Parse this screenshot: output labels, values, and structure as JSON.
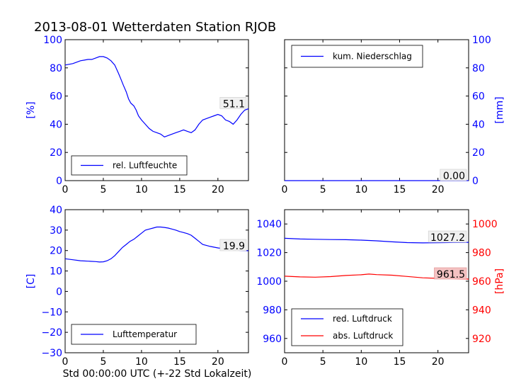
{
  "figure_title": "2013-08-01 Wetterdaten Station RJOB",
  "x_axis_label": "Std 00:00:00 UTC (+-22 Std Lokalzeit)",
  "colors": {
    "blue": "#0000ff",
    "red": "#ff0000",
    "annotation_red_bg": "#f4c2c2",
    "annotation_bg": "#f0f0f0"
  },
  "chart_data": [
    {
      "type": "line",
      "panel": "top-left",
      "ylabel": "[%]",
      "ylabel_side": "left",
      "xlim": [
        0,
        24
      ],
      "ylim": [
        0,
        100
      ],
      "xticks": [
        0,
        5,
        10,
        15,
        20
      ],
      "yticks": [
        0,
        20,
        40,
        60,
        80,
        100
      ],
      "legend_placement": "lower-left",
      "series": [
        {
          "name": "rel. Luftfeuchte",
          "color": "#0000ff",
          "x": [
            0,
            0.5,
            1,
            1.5,
            2,
            2.5,
            3,
            3.5,
            4,
            4.5,
            5,
            5.5,
            6,
            6.5,
            7,
            7.3,
            7.6,
            8,
            8.3,
            8.6,
            9,
            9.3,
            9.6,
            10,
            10.5,
            11,
            11.5,
            12,
            12.5,
            13,
            13.5,
            14,
            14.5,
            15,
            15.5,
            16,
            16.5,
            17,
            17.5,
            18,
            18.5,
            19,
            19.5,
            20,
            20.5,
            21,
            21.5,
            22,
            22.5,
            23,
            23.5,
            24
          ],
          "y": [
            82,
            82.5,
            83,
            84,
            85,
            85.5,
            86,
            86,
            87,
            88,
            88,
            87,
            85,
            82,
            76,
            72,
            68,
            63,
            58,
            55,
            53,
            50,
            46,
            43,
            40,
            37,
            35,
            34,
            33,
            31,
            32,
            33,
            34,
            35,
            36,
            35,
            34,
            36,
            40,
            43,
            44,
            45,
            46,
            47,
            46,
            43,
            42,
            40,
            43,
            47,
            50,
            51
          ]
        }
      ],
      "annotation": {
        "text": "51.1",
        "x": 24,
        "y": 51.1
      }
    },
    {
      "type": "line",
      "panel": "top-right",
      "ylabel": "[mm]",
      "ylabel_side": "right",
      "xlim": [
        0,
        24
      ],
      "ylim": [
        0,
        100
      ],
      "xticks": [
        0,
        5,
        10,
        15,
        20
      ],
      "yticks": [
        0,
        20,
        40,
        60,
        80,
        100
      ],
      "legend_placement": "upper-left",
      "series": [
        {
          "name": "kum. Niederschlag",
          "color": "#0000ff",
          "x": [
            0,
            24
          ],
          "y": [
            0,
            0
          ]
        }
      ],
      "annotation": {
        "text": "0.00",
        "x": 24,
        "y": 0
      }
    },
    {
      "type": "line",
      "panel": "bottom-left",
      "ylabel": "[C]",
      "ylabel_side": "left",
      "xlim": [
        0,
        24
      ],
      "ylim": [
        -30,
        40
      ],
      "xticks": [
        0,
        5,
        10,
        15,
        20
      ],
      "yticks": [
        -30,
        -20,
        -10,
        0,
        10,
        20,
        30,
        40
      ],
      "legend_placement": "lower-left",
      "series": [
        {
          "name": "Lufttemperatur",
          "color": "#0000ff",
          "x": [
            0,
            1,
            2,
            3,
            4,
            4.5,
            5,
            5.5,
            6,
            6.5,
            7,
            7.5,
            8,
            8.5,
            9,
            9.5,
            10,
            10.5,
            11,
            11.5,
            12,
            12.5,
            13,
            13.5,
            14,
            14.5,
            15,
            15.5,
            16,
            16.5,
            17,
            17.5,
            18,
            19,
            20,
            21,
            22,
            23,
            24
          ],
          "y": [
            16,
            15.5,
            15,
            14.8,
            14.6,
            14.4,
            14.5,
            15,
            16,
            17.5,
            19.5,
            21.5,
            23,
            24.5,
            25.5,
            27,
            28.5,
            30,
            30.5,
            31,
            31.5,
            31.5,
            31.3,
            31,
            30.5,
            30,
            29.3,
            28.8,
            28.3,
            27.5,
            26,
            24.5,
            23,
            22,
            21.3,
            20.8,
            20.3,
            20,
            19.9
          ]
        }
      ],
      "annotation": {
        "text": "19.9",
        "x": 24,
        "y": 19.9
      }
    },
    {
      "type": "line",
      "panel": "bottom-right",
      "ylabel": "[hPa]",
      "ylabel_side": "right",
      "xlim": [
        0,
        24
      ],
      "ylim_left": [
        950,
        1050
      ],
      "ylim_right": [
        910,
        1010
      ],
      "xticks": [
        0,
        5,
        10,
        15,
        20
      ],
      "yticks_left": [
        960,
        980,
        1000,
        1020,
        1040
      ],
      "yticks_right": [
        920,
        940,
        960,
        980,
        1000
      ],
      "legend_placement": "lower-left",
      "series": [
        {
          "name": "red. Luftdruck",
          "color": "#0000ff",
          "axis": "left",
          "x": [
            0,
            2,
            4,
            6,
            8,
            10,
            12,
            14,
            16,
            18,
            20,
            22,
            24
          ],
          "y": [
            1030,
            1029.5,
            1029.3,
            1029.1,
            1029,
            1028.7,
            1028.2,
            1027.5,
            1027,
            1026.8,
            1026.9,
            1027.1,
            1027.2
          ]
        },
        {
          "name": "abs. Luftdruck",
          "color": "#ff0000",
          "axis": "right",
          "x": [
            0,
            2,
            4,
            6,
            8,
            10,
            11,
            12,
            14,
            16,
            18,
            20,
            22,
            24
          ],
          "y": [
            963.5,
            963,
            962.8,
            963.2,
            964,
            964.5,
            965,
            964.6,
            964.2,
            963.3,
            962.4,
            962,
            961.8,
            961.5
          ]
        }
      ],
      "annotations": [
        {
          "text": "1027.2",
          "x": 24,
          "y": 1027.2,
          "axis": "left"
        },
        {
          "text": "961.5",
          "x": 24,
          "y": 961.5,
          "axis": "right"
        }
      ]
    }
  ]
}
